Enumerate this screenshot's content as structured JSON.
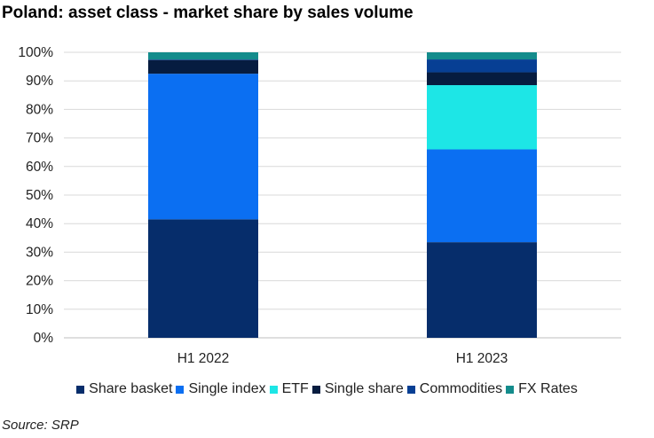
{
  "chart_data": {
    "type": "bar",
    "stacked": true,
    "title": "Poland: asset class - market share by sales volume",
    "categories": [
      "H1 2022",
      "H1 2023"
    ],
    "yticks": [
      "0%",
      "10%",
      "20%",
      "30%",
      "40%",
      "50%",
      "60%",
      "70%",
      "80%",
      "90%",
      "100%"
    ],
    "ylim": [
      0,
      100
    ],
    "grid": true,
    "legend_position": "bottom",
    "series": [
      {
        "name": "Share basket",
        "color": "#062d6b",
        "values": [
          41.5,
          33.5
        ]
      },
      {
        "name": "Single index",
        "color": "#0b6ff2",
        "values": [
          51.0,
          32.5
        ]
      },
      {
        "name": "ETF",
        "color": "#1de6e6",
        "values": [
          0.0,
          22.5
        ]
      },
      {
        "name": "Single share",
        "color": "#061c40",
        "values": [
          4.8,
          4.5
        ]
      },
      {
        "name": "Commodities",
        "color": "#073f94",
        "values": [
          0.2,
          4.5
        ]
      },
      {
        "name": "FX Rates",
        "color": "#148c8c",
        "values": [
          2.5,
          2.5
        ]
      }
    ],
    "source": "Source: SRP"
  }
}
